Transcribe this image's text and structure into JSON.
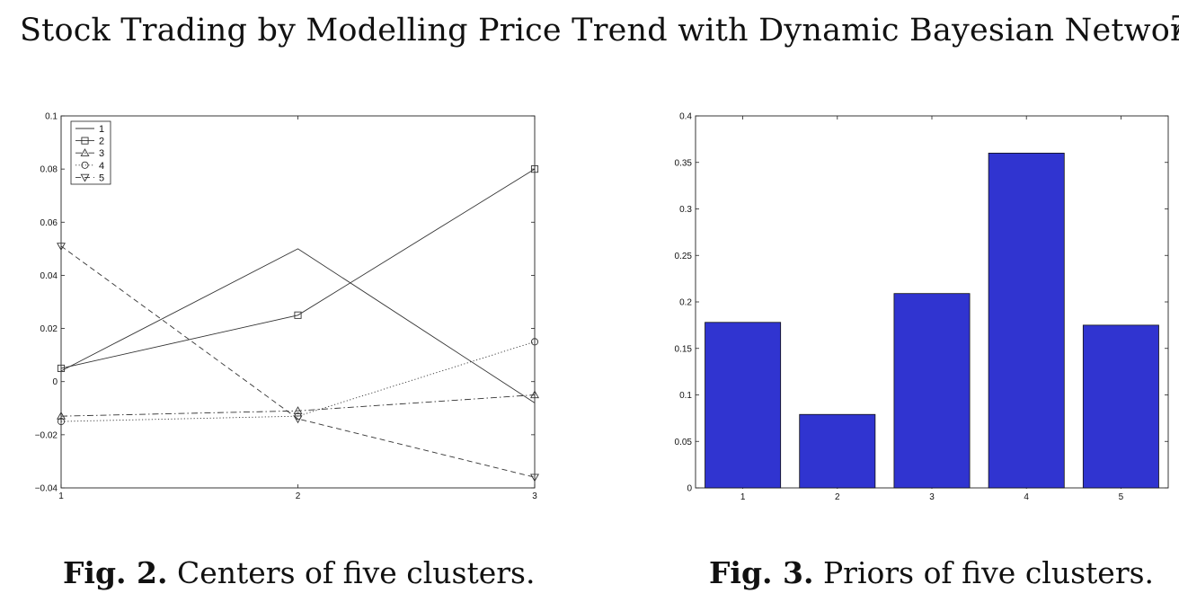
{
  "header": {
    "running_title": "Stock Trading by Modelling Price Trend with Dynamic Bayesian Networks",
    "edge_mark": "7"
  },
  "captions": [
    {
      "label": "Fig. 2.",
      "text": "Centers of five clusters."
    },
    {
      "label": "Fig. 3.",
      "text": "Priors of five clusters."
    }
  ],
  "chart_data": [
    {
      "type": "line",
      "x": [
        1,
        2,
        3
      ],
      "xticks": [
        1,
        2,
        3
      ],
      "yticks": [
        -0.04,
        -0.02,
        0,
        0.02,
        0.04,
        0.06,
        0.08,
        0.1
      ],
      "ytick_labels": [
        "−0.04",
        "−0.02",
        "0",
        "0.02",
        "0.04",
        "0.06",
        "0.08",
        "0.1"
      ],
      "xlim": [
        1,
        3
      ],
      "ylim": [
        -0.04,
        0.1
      ],
      "legend_position": "top-left",
      "series": [
        {
          "name": "1",
          "values": [
            0.004,
            0.05,
            -0.008
          ],
          "line": "solid",
          "marker": "none",
          "color": "#333333"
        },
        {
          "name": "2",
          "values": [
            0.005,
            0.025,
            0.08
          ],
          "line": "solid",
          "marker": "square",
          "color": "#333333"
        },
        {
          "name": "3",
          "values": [
            -0.013,
            -0.011,
            -0.005
          ],
          "line": "dashdot",
          "marker": "triangle-up",
          "color": "#333333"
        },
        {
          "name": "4",
          "values": [
            -0.015,
            -0.013,
            0.015
          ],
          "line": "dotted",
          "marker": "circle",
          "color": "#333333"
        },
        {
          "name": "5",
          "values": [
            0.051,
            -0.014,
            -0.036
          ],
          "line": "dashed",
          "marker": "triangle-down",
          "color": "#333333"
        }
      ]
    },
    {
      "type": "bar",
      "categories": [
        "1",
        "2",
        "3",
        "4",
        "5"
      ],
      "values": [
        0.178,
        0.079,
        0.209,
        0.36,
        0.175
      ],
      "yticks": [
        0,
        0.05,
        0.1,
        0.15,
        0.2,
        0.25,
        0.3,
        0.35,
        0.4
      ],
      "ylim": [
        0,
        0.4
      ],
      "bar_color": "#3034d0"
    }
  ]
}
